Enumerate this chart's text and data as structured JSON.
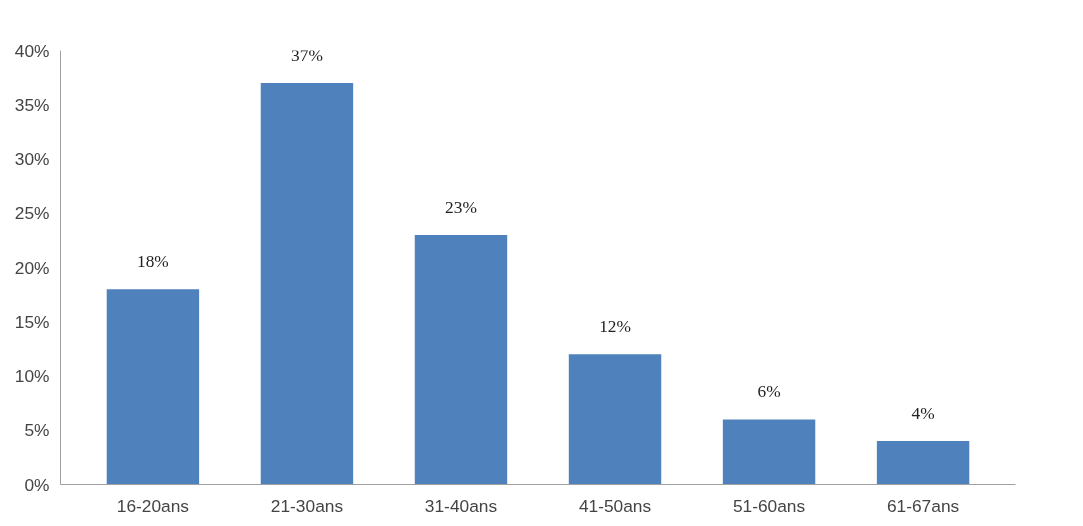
{
  "chart_data": {
    "type": "bar",
    "categories": [
      "16-20ans",
      "21-30ans",
      "31-40ans",
      "41-50ans",
      "51-60ans",
      "61-67ans"
    ],
    "values": [
      18,
      37,
      23,
      12,
      6,
      4
    ],
    "value_labels": [
      "18%",
      "37%",
      "23%",
      "12%",
      "6%",
      "4%"
    ],
    "color": "#4f81bd",
    "ylim": [
      0,
      40
    ],
    "yticks": [
      {
        "value": 0,
        "label": "0%"
      },
      {
        "value": 5,
        "label": "5%"
      },
      {
        "value": 10,
        "label": "10%"
      },
      {
        "value": 15,
        "label": "15%"
      },
      {
        "value": 20,
        "label": "20%"
      },
      {
        "value": 25,
        "label": "25%"
      },
      {
        "value": 30,
        "label": "30%"
      },
      {
        "value": 35,
        "label": "35%"
      },
      {
        "value": 40,
        "label": "40%"
      }
    ],
    "grid": false
  }
}
